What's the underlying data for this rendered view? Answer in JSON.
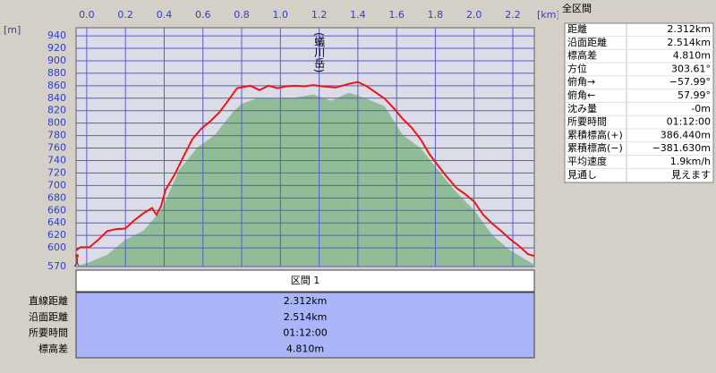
{
  "chart_data": {
    "type": "line",
    "x_unit": "[km]",
    "y_unit": "[m]",
    "annotation": "(蟻川岳)",
    "xlim": [
      -0.055,
      2.311
    ],
    "ylim": [
      570,
      953
    ],
    "xticks": [
      {
        "value": 0,
        "label": "0.0"
      },
      0.2,
      0.4,
      0.6,
      0.8,
      {
        "value": 1,
        "label": "1.0"
      },
      1.2,
      1.4,
      1.6,
      1.8,
      {
        "value": 2,
        "label": "2.0"
      },
      2.2
    ],
    "yticks": [
      570,
      600,
      620,
      640,
      660,
      680,
      700,
      720,
      740,
      760,
      780,
      800,
      820,
      840,
      860,
      880,
      900,
      920,
      940
    ],
    "grid": true,
    "series": [
      {
        "color": "#e81818",
        "x": [
          -0.055,
          -0.032,
          0.014,
          0.06,
          0.106,
          0.153,
          0.199,
          0.245,
          0.291,
          0.337,
          0.36,
          0.384,
          0.407,
          0.453,
          0.499,
          0.545,
          0.591,
          0.638,
          0.684,
          0.73,
          0.776,
          0.845,
          0.892,
          0.938,
          0.984,
          1.031,
          1.077,
          1.123,
          1.169,
          1.215,
          1.285,
          1.354,
          1.4,
          1.446,
          1.493,
          1.539,
          1.585,
          1.631,
          1.677,
          1.724,
          1.77,
          1.816,
          1.862,
          1.909,
          1.955,
          2.001,
          2.047,
          2.093,
          2.14,
          2.186,
          2.232,
          2.278,
          2.311
        ],
        "values": [
          596,
          601,
          601,
          613,
          627,
          630,
          631,
          644,
          655,
          664,
          653,
          667,
          693,
          717,
          746,
          774,
          791,
          803,
          817,
          836,
          856,
          860,
          853,
          860,
          856,
          859,
          860,
          859,
          861,
          859,
          857,
          863,
          866,
          859,
          849,
          839,
          824,
          807,
          793,
          774,
          750,
          731,
          713,
          696,
          686,
          674,
          653,
          639,
          627,
          614,
          603,
          590,
          587
        ]
      },
      {
        "color": "#90bc98",
        "x": [
          -0.055,
          0.014,
          0.106,
          0.199,
          0.291,
          0.384,
          0.476,
          0.568,
          0.661,
          0.753,
          0.799,
          0.892,
          0.984,
          1.077,
          1.169,
          1.262,
          1.354,
          1.446,
          1.539,
          1.631,
          1.724,
          1.816,
          1.909,
          2.001,
          2.093,
          2.186,
          2.311
        ],
        "values": [
          570,
          577,
          589,
          613,
          627,
          660,
          724,
          760,
          781,
          817,
          831,
          841,
          839,
          841,
          846,
          836,
          849,
          839,
          827,
          781,
          760,
          724,
          689,
          660,
          621,
          596,
          573
        ]
      }
    ]
  },
  "summary_panel": {
    "title": "全区間",
    "rows": [
      [
        "距離",
        "2.312km"
      ],
      [
        "沿面距離",
        "2.514km"
      ],
      [
        "標高差",
        "4.810m"
      ],
      [
        "方位",
        "303.61°"
      ],
      [
        "俯角→",
        "−57.99°"
      ],
      [
        "俯角←",
        "57.99°"
      ],
      [
        "沈み量",
        "-0m"
      ],
      [
        "所要時間",
        "01:12:00"
      ],
      [
        "累積標高(+)",
        "386.440m"
      ],
      [
        "累積標高(−)",
        "−381.630m"
      ],
      [
        "平均速度",
        "1.9km/h"
      ],
      [
        "見通し",
        "見えます"
      ]
    ]
  },
  "section_table": {
    "header": "区間 1",
    "rows": [
      [
        "直線距離",
        "2.312km"
      ],
      [
        "沿面距離",
        "2.514km"
      ],
      [
        "所要時間",
        "01:12:00"
      ],
      [
        "標高差",
        "4.810m"
      ]
    ]
  }
}
